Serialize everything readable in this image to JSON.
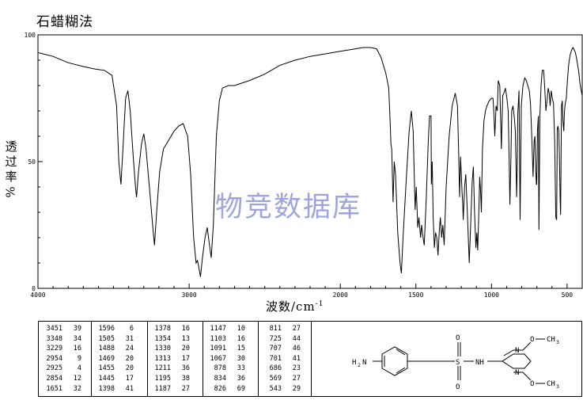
{
  "title": "石蜡糊法",
  "watermark": "物竞数据库",
  "chart_data": {
    "type": "line",
    "ylabel_chars": [
      "透",
      "过",
      "率"
    ],
    "ylabel_unit": "%",
    "xlabel": "波数/cm",
    "xlabel_sup": "-1",
    "xlim": [
      4000,
      400
    ],
    "ylim": [
      0,
      100
    ],
    "x_ticks": [
      4000,
      3000,
      2000,
      1500,
      1000,
      500
    ],
    "y_ticks": [
      0,
      50,
      100
    ],
    "series": [
      {
        "line_color": "#000000",
        "points": [
          [
            4000,
            93
          ],
          [
            3900,
            91.5
          ],
          [
            3800,
            89
          ],
          [
            3700,
            87.5
          ],
          [
            3620,
            86.5
          ],
          [
            3560,
            86
          ],
          [
            3510,
            84
          ],
          [
            3480,
            72
          ],
          [
            3465,
            50
          ],
          [
            3451,
            41
          ],
          [
            3438,
            55
          ],
          [
            3420,
            75
          ],
          [
            3405,
            78
          ],
          [
            3390,
            70
          ],
          [
            3370,
            52
          ],
          [
            3355,
            40
          ],
          [
            3348,
            36
          ],
          [
            3335,
            46
          ],
          [
            3315,
            57
          ],
          [
            3300,
            61
          ],
          [
            3285,
            55
          ],
          [
            3260,
            38
          ],
          [
            3240,
            24
          ],
          [
            3229,
            17
          ],
          [
            3215,
            30
          ],
          [
            3195,
            46
          ],
          [
            3170,
            55
          ],
          [
            3140,
            58
          ],
          [
            3100,
            62
          ],
          [
            3070,
            64
          ],
          [
            3040,
            65
          ],
          [
            3010,
            60
          ],
          [
            2990,
            45
          ],
          [
            2970,
            20
          ],
          [
            2954,
            10
          ],
          [
            2945,
            11
          ],
          [
            2935,
            8
          ],
          [
            2925,
            4.5
          ],
          [
            2912,
            12
          ],
          [
            2895,
            20
          ],
          [
            2880,
            24
          ],
          [
            2870,
            19
          ],
          [
            2854,
            12
          ],
          [
            2840,
            25
          ],
          [
            2820,
            60
          ],
          [
            2800,
            74
          ],
          [
            2780,
            79
          ],
          [
            2740,
            80
          ],
          [
            2700,
            80
          ],
          [
            2600,
            82
          ],
          [
            2500,
            84.5
          ],
          [
            2400,
            88
          ],
          [
            2300,
            90
          ],
          [
            2200,
            91.5
          ],
          [
            2100,
            92.5
          ],
          [
            2000,
            93.5
          ],
          [
            1900,
            94.5
          ],
          [
            1850,
            95
          ],
          [
            1800,
            95
          ],
          [
            1760,
            94.5
          ],
          [
            1730,
            91
          ],
          [
            1700,
            85
          ],
          [
            1680,
            79
          ],
          [
            1670,
            65
          ],
          [
            1665,
            57
          ],
          [
            1660,
            55
          ],
          [
            1651,
            34
          ],
          [
            1643,
            50
          ],
          [
            1635,
            45
          ],
          [
            1620,
            22
          ],
          [
            1605,
            10
          ],
          [
            1596,
            6
          ],
          [
            1585,
            20
          ],
          [
            1565,
            42
          ],
          [
            1545,
            62
          ],
          [
            1530,
            70
          ],
          [
            1518,
            62
          ],
          [
            1505,
            31
          ],
          [
            1498,
            40
          ],
          [
            1488,
            24
          ],
          [
            1480,
            28
          ],
          [
            1469,
            20
          ],
          [
            1462,
            25
          ],
          [
            1455,
            21
          ],
          [
            1445,
            17
          ],
          [
            1432,
            35
          ],
          [
            1418,
            58
          ],
          [
            1410,
            68
          ],
          [
            1400,
            68
          ],
          [
            1398,
            41
          ],
          [
            1392,
            50
          ],
          [
            1386,
            28
          ],
          [
            1378,
            16
          ],
          [
            1370,
            22
          ],
          [
            1362,
            20
          ],
          [
            1354,
            13
          ],
          [
            1344,
            24
          ],
          [
            1338,
            28
          ],
          [
            1330,
            20
          ],
          [
            1322,
            25
          ],
          [
            1313,
            17
          ],
          [
            1300,
            40
          ],
          [
            1280,
            60
          ],
          [
            1260,
            72
          ],
          [
            1240,
            77
          ],
          [
            1225,
            72
          ],
          [
            1218,
            55
          ],
          [
            1211,
            36
          ],
          [
            1205,
            52
          ],
          [
            1195,
            38
          ],
          [
            1190,
            33
          ],
          [
            1187,
            27
          ],
          [
            1178,
            40
          ],
          [
            1170,
            45
          ],
          [
            1160,
            30
          ],
          [
            1147,
            10
          ],
          [
            1138,
            25
          ],
          [
            1128,
            42
          ],
          [
            1120,
            48
          ],
          [
            1112,
            30
          ],
          [
            1103,
            16
          ],
          [
            1097,
            22
          ],
          [
            1091,
            15
          ],
          [
            1084,
            30
          ],
          [
            1078,
            44
          ],
          [
            1072,
            38
          ],
          [
            1067,
            30
          ],
          [
            1060,
            55
          ],
          [
            1050,
            66
          ],
          [
            1040,
            70
          ],
          [
            1030,
            72
          ],
          [
            1015,
            74
          ],
          [
            1000,
            75
          ],
          [
            990,
            75
          ],
          [
            985,
            70
          ],
          [
            978,
            60
          ],
          [
            970,
            72
          ],
          [
            962,
            70
          ],
          [
            955,
            82
          ],
          [
            945,
            80
          ],
          [
            935,
            55
          ],
          [
            926,
            76
          ],
          [
            918,
            77
          ],
          [
            908,
            79
          ],
          [
            898,
            75
          ],
          [
            890,
            70
          ],
          [
            883,
            50
          ],
          [
            878,
            33
          ],
          [
            872,
            50
          ],
          [
            866,
            70
          ],
          [
            858,
            72
          ],
          [
            850,
            68
          ],
          [
            842,
            62
          ],
          [
            834,
            36
          ],
          [
            830,
            47
          ],
          [
            826,
            69
          ],
          [
            818,
            78
          ],
          [
            811,
            27
          ],
          [
            803,
            72
          ],
          [
            792,
            80
          ],
          [
            780,
            83
          ],
          [
            770,
            82
          ],
          [
            760,
            80
          ],
          [
            750,
            78
          ],
          [
            742,
            73
          ],
          [
            735,
            62
          ],
          [
            725,
            44
          ],
          [
            718,
            58
          ],
          [
            713,
            60
          ],
          [
            707,
            46
          ],
          [
            703,
            41
          ],
          [
            701,
            41
          ],
          [
            696,
            62
          ],
          [
            690,
            68
          ],
          [
            686,
            23
          ],
          [
            680,
            68
          ],
          [
            672,
            80
          ],
          [
            664,
            86
          ],
          [
            655,
            86
          ],
          [
            647,
            78
          ],
          [
            640,
            70
          ],
          [
            633,
            74
          ],
          [
            625,
            79
          ],
          [
            618,
            77
          ],
          [
            612,
            72
          ],
          [
            605,
            78
          ],
          [
            598,
            75
          ],
          [
            590,
            73
          ],
          [
            582,
            58
          ],
          [
            575,
            28
          ],
          [
            569,
            27
          ],
          [
            565,
            63
          ],
          [
            560,
            64
          ],
          [
            555,
            62
          ],
          [
            550,
            50
          ],
          [
            546,
            35
          ],
          [
            543,
            29
          ],
          [
            537,
            72
          ],
          [
            532,
            74
          ],
          [
            527,
            66
          ],
          [
            522,
            62
          ],
          [
            517,
            70
          ],
          [
            512,
            73
          ],
          [
            505,
            75
          ],
          [
            498,
            82
          ],
          [
            490,
            88
          ],
          [
            480,
            92
          ],
          [
            470,
            94
          ],
          [
            462,
            95
          ],
          [
            452,
            94
          ],
          [
            445,
            93
          ],
          [
            438,
            91
          ],
          [
            430,
            88
          ],
          [
            422,
            85
          ],
          [
            415,
            81
          ],
          [
            407,
            78
          ],
          [
            400,
            76
          ]
        ]
      }
    ]
  },
  "peak_table": [
    [
      [
        "3451",
        "39"
      ],
      [
        "3348",
        "34"
      ],
      [
        "3229",
        "16"
      ],
      [
        "2954",
        "9"
      ],
      [
        "2925",
        "4"
      ],
      [
        "2854",
        "12"
      ],
      [
        "1651",
        "32"
      ]
    ],
    [
      [
        "1596",
        "6"
      ],
      [
        "1505",
        "31"
      ],
      [
        "1488",
        "24"
      ],
      [
        "1469",
        "20"
      ],
      [
        "1455",
        "20"
      ],
      [
        "1445",
        "17"
      ],
      [
        "1398",
        "41"
      ]
    ],
    [
      [
        "1378",
        "16"
      ],
      [
        "1354",
        "13"
      ],
      [
        "1330",
        "20"
      ],
      [
        "1313",
        "17"
      ],
      [
        "1211",
        "36"
      ],
      [
        "1195",
        "38"
      ],
      [
        "1187",
        "27"
      ]
    ],
    [
      [
        "1147",
        "10"
      ],
      [
        "1103",
        "16"
      ],
      [
        "1091",
        "15"
      ],
      [
        "1067",
        "30"
      ],
      [
        "878",
        "33"
      ],
      [
        "834",
        "36"
      ],
      [
        "826",
        "69"
      ]
    ],
    [
      [
        "811",
        "27"
      ],
      [
        "725",
        "44"
      ],
      [
        "707",
        "46"
      ],
      [
        "701",
        "41"
      ],
      [
        "686",
        "23"
      ],
      [
        "569",
        "27"
      ],
      [
        "543",
        "29"
      ]
    ]
  ],
  "structure": {
    "nh2": "H",
    "nh2_sub": "2",
    "nh2_n": "N",
    "s": "S",
    "o_top": "O",
    "o_bottom": "O",
    "nh": "NH",
    "n_top": "N",
    "n_bottom": "N",
    "ome_top": "O",
    "ome_bottom": "O",
    "ch3_c": "CH",
    "ch3_sub": "3"
  }
}
